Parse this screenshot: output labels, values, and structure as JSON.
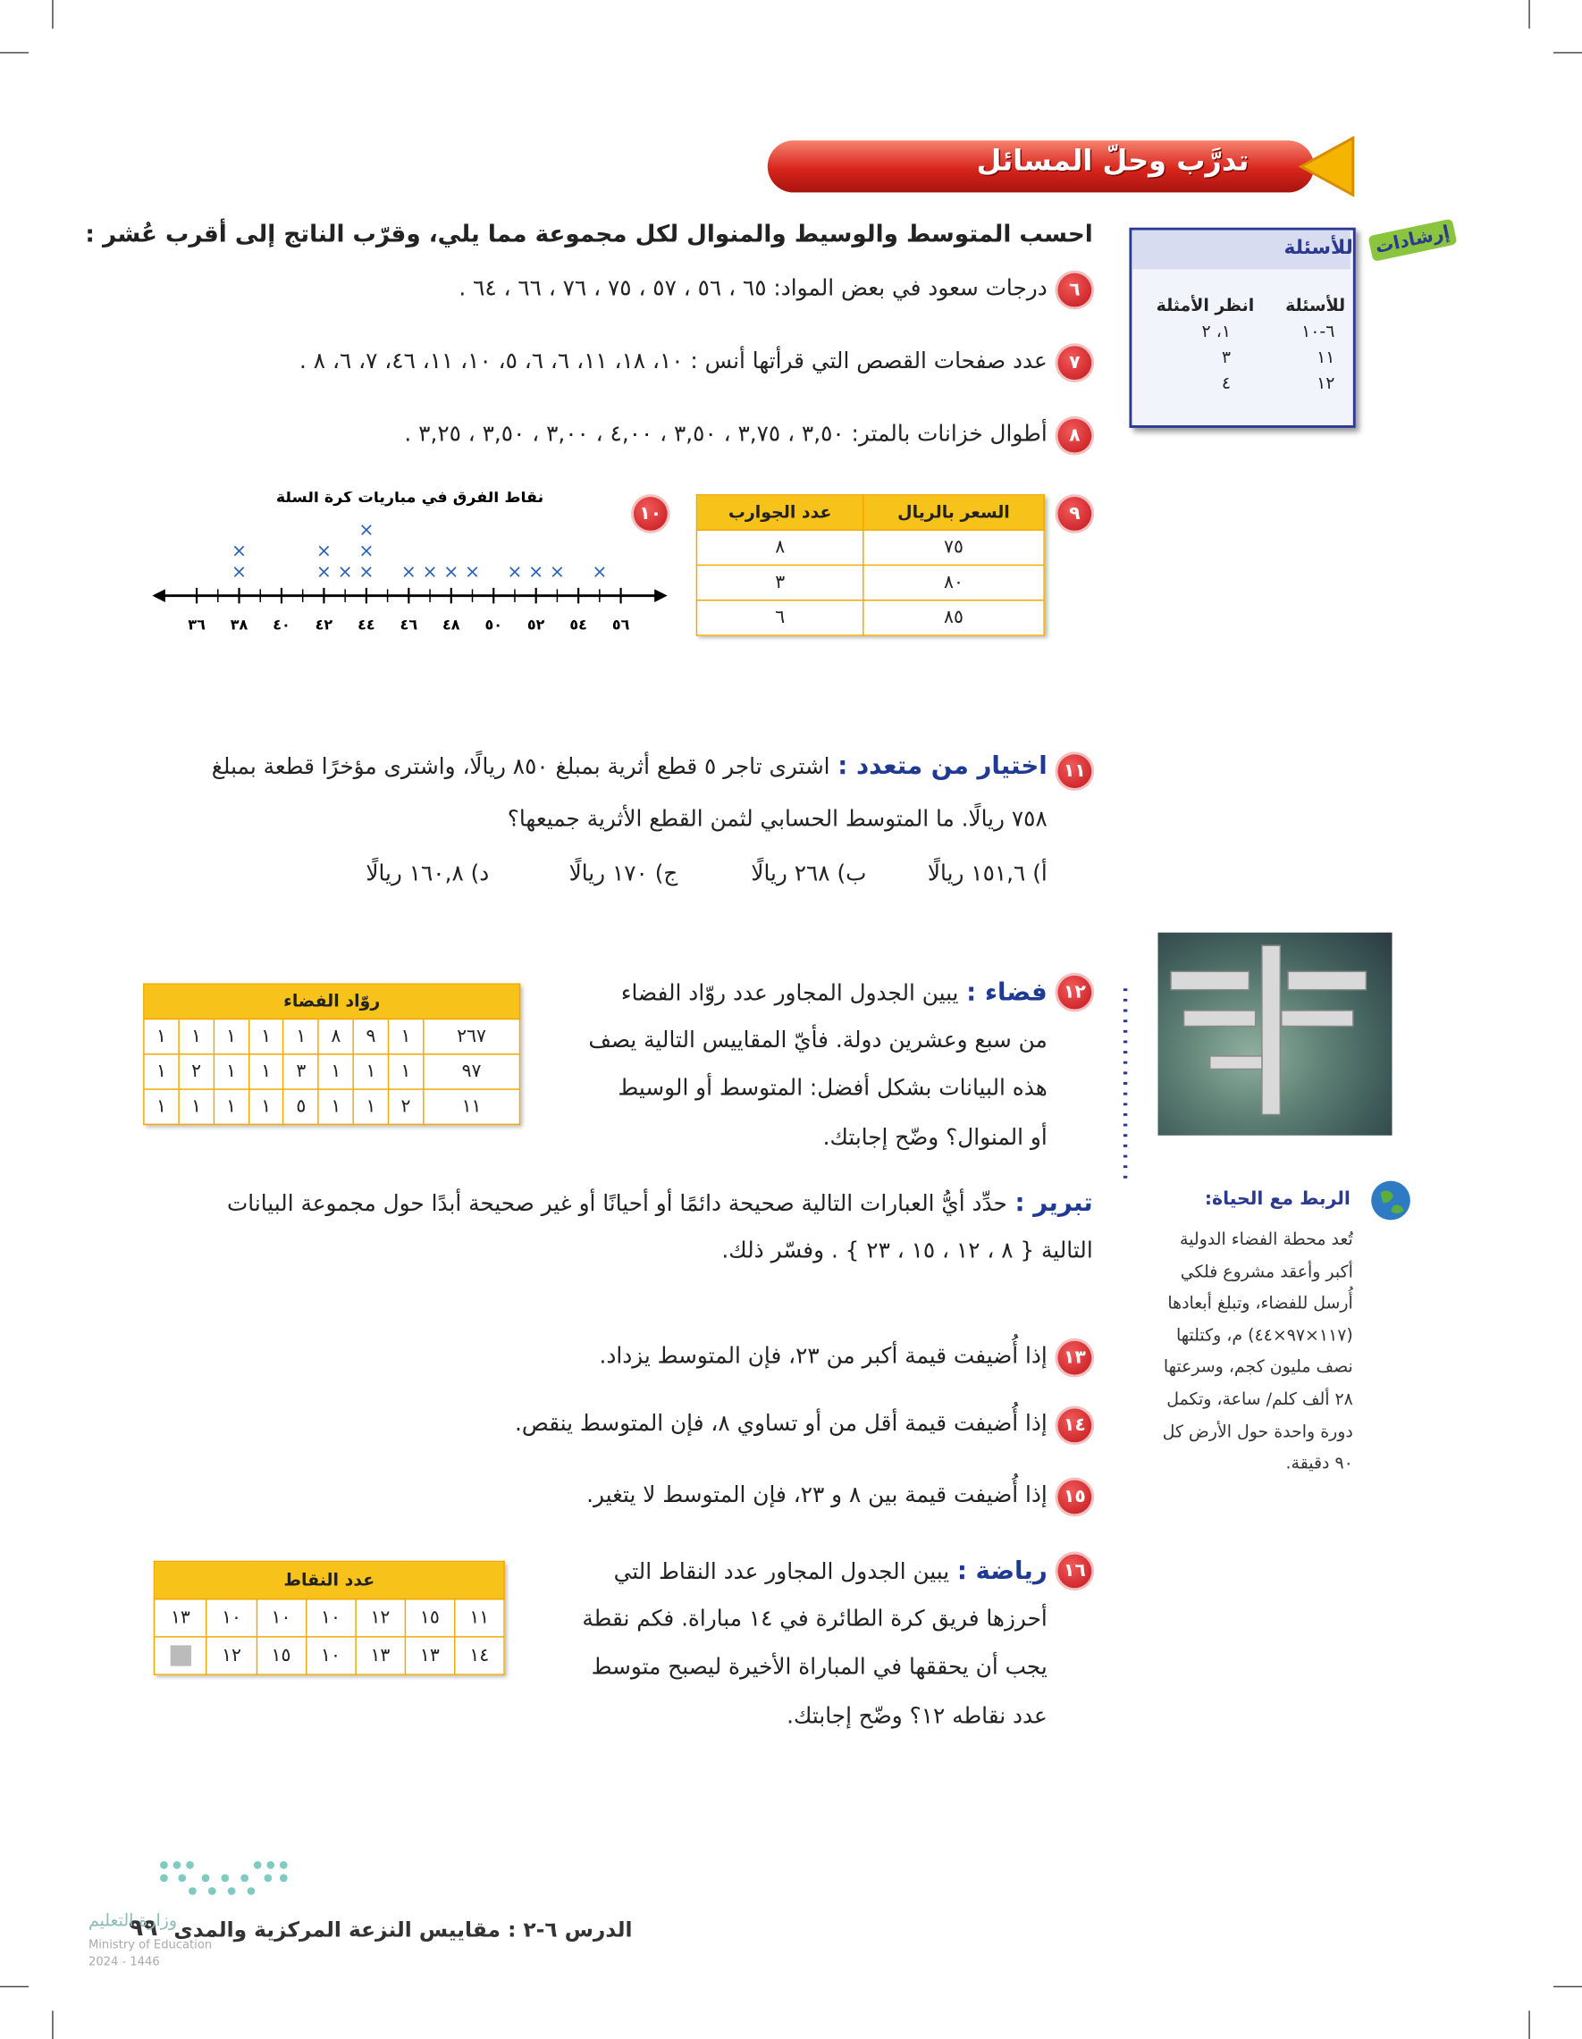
{
  "banner": "تدرَّب وحلّ المسائل",
  "instructions": "احسب المتوسط والوسيط والمنوال لكل مجموعة مما يلي، وقرّب الناتج إلى أقرب عُشر :",
  "hint_box": {
    "label": "إرشادات",
    "title": "للأسئلة",
    "columns": [
      "للأسئلة",
      "انظر الأمثلة"
    ],
    "rows": [
      [
        "٦-١٠",
        "١، ٢"
      ],
      [
        "١١",
        "٣"
      ],
      [
        "١٢",
        "٤"
      ]
    ]
  },
  "problems": [
    {
      "number": "٦",
      "text": "درجات سعود في بعض المواد: ٦٥ ، ٥٦ ، ٥٧ ، ٧٥ ، ٧٦ ، ٦٦ ، ٦٤ ."
    },
    {
      "number": "٧",
      "text": "عدد صفحات القصص التي قرأتها أنس : ١٠، ١٨، ١١، ٦، ٦، ٥، ١٠، ١١، ٤٦، ٧، ٦، ٨ ."
    },
    {
      "number": "٨",
      "text": "أطوال خزانات بالمتر: ٣,٥٠ ، ٣,٧٥ ، ٣,٥٠ ، ٤,٠٠ ، ٣,٠٠ ، ٣,٥٠ ، ٣,٢٥ ."
    },
    {
      "number": "٩",
      "table": {
        "header": [
          "السعر بالريال",
          "عدد الجوارب"
        ],
        "rows": [
          [
            "٧٥",
            "٨"
          ],
          [
            "٨٠",
            "٣"
          ],
          [
            "٨٥",
            "٦"
          ]
        ]
      }
    },
    {
      "number": "١٠",
      "dot_plot": {
        "title": "نقاط الفرق في مباريات كرة السلة",
        "xlim": [
          34.7,
          57.4
        ],
        "xticks": [
          {
            "value": 36,
            "label": "٣٦"
          },
          {
            "value": 38,
            "label": "٣٨"
          },
          {
            "value": 40,
            "label": "٤٠"
          },
          {
            "value": 42,
            "label": "٤٢"
          },
          {
            "value": 44,
            "label": "٤٤"
          },
          {
            "value": 46,
            "label": "٤٦"
          },
          {
            "value": 48,
            "label": "٤٨"
          },
          {
            "value": 50,
            "label": "٥٠"
          },
          {
            "value": 52,
            "label": "٥٢"
          },
          {
            "value": 54,
            "label": "٥٤"
          },
          {
            "value": 56,
            "label": "٥٦"
          }
        ],
        "minor_xticks": [
          37,
          39,
          41,
          43,
          45,
          47,
          49,
          51,
          53,
          55
        ],
        "points": [
          {
            "value": 38,
            "count": 2
          },
          {
            "value": 42,
            "count": 2
          },
          {
            "value": 43,
            "count": 1
          },
          {
            "value": 44,
            "count": 3
          },
          {
            "value": 46,
            "count": 1
          },
          {
            "value": 47,
            "count": 1
          },
          {
            "value": 48,
            "count": 1
          },
          {
            "value": 49,
            "count": 1
          },
          {
            "value": 51,
            "count": 1
          },
          {
            "value": 52,
            "count": 1
          },
          {
            "value": 53,
            "count": 1
          },
          {
            "value": 55,
            "count": 1
          }
        ]
      }
    },
    {
      "number": "١١",
      "label": "اختيار من متعدد :",
      "lines": [
        "اشترى تاجر ٥ قطع أثرية بمبلغ ٨٥٠ ريالًا، واشترى مؤخرًا قطعة بمبلغ",
        "٧٥٨ ريالًا. ما المتوسط الحسابي لثمن القطع الأثرية جميعها؟"
      ],
      "choices": [
        "أ) ١٥١,٦ ريالًا",
        "ب) ٢٦٨ ريالًا",
        "ج) ١٧٠ ريالًا",
        "د) ١٦٠,٨ ريالًا"
      ]
    },
    {
      "number": "١٢",
      "label": "فضاء :",
      "lines": [
        "يبين الجدول المجاور عدد روّاد الفضاء",
        "من سبع وعشرين دولة. فأيّ المقاييس التالية يصف",
        "هذه البيانات بشكل أفضل: المتوسط أو الوسيط",
        "أو المنوال؟ وضّح إجابتك."
      ],
      "table": {
        "title": "روّاد الفضاء",
        "rows": [
          [
            "٢٦٧",
            "١",
            "٩",
            "٨",
            "١",
            "١",
            "١",
            "١",
            "١"
          ],
          [
            "٩٧",
            "١",
            "١",
            "١",
            "٣",
            "١",
            "١",
            "٢",
            "١"
          ],
          [
            "١١",
            "٢",
            "١",
            "١",
            "٥",
            "١",
            "١",
            "١",
            "١"
          ]
        ]
      }
    },
    {
      "number": "١٣",
      "text": "إذا أُضيفت قيمة أكبر من ٢٣، فإن المتوسط يزداد."
    },
    {
      "number": "١٤",
      "text": "إذا أُضيفت قيمة أقل من أو تساوي ٨، فإن المتوسط ينقص."
    },
    {
      "number": "١٥",
      "text": "إذا أُضيفت قيمة بين ٨ و ٢٣، فإن المتوسط لا يتغير."
    },
    {
      "number": "١٦",
      "label": "رياضة :",
      "lines": [
        "يبين الجدول المجاور عدد النقاط التي",
        "أحرزها فريق كرة الطائرة في ١٤ مباراة. فكم نقطة",
        "يجب أن يحققها في المباراة الأخيرة ليصبح متوسط",
        "عدد نقاطه ١٢؟ وضّح إجابتك."
      ],
      "table": {
        "title": "عدد النقاط",
        "rows": [
          [
            "١١",
            "١٥",
            "١٢",
            "١٠",
            "١٠",
            "١٠",
            "١٣"
          ],
          [
            "١٤",
            "١٣",
            "١٣",
            "١٠",
            "١٥",
            "١٢",
            null
          ]
        ]
      }
    }
  ],
  "reasoning": {
    "label": "تبرير :",
    "lines": [
      "حدِّد أيُّ العبارات التالية صحيحة دائمًا أو أحيانًا أو غير صحيحة أبدًا حول مجموعة البيانات",
      "التالية { ٨ ، ١٢ ، ١٥ ، ٢٣ } . وفسّر ذلك."
    ]
  },
  "sidebar": {
    "heading": "الربط مع الحياة:",
    "lines": [
      "تُعد محطة الفضاء الدولية",
      "أكبر وأعقد مشروع فلكي",
      "أُرسل للفضاء، وتبلغ أبعادها",
      "(١١٧×٩٧×٤٤) م، وكتلتها",
      "نصف مليون كجم، وسرعتها",
      "٢٨ ألف كلم/ ساعة، وتكمل",
      "دورة واحدة حول الأرض كل",
      "٩٠ دقيقة."
    ]
  },
  "footer": {
    "lesson": "الدرس ٦-٢ : مقاييس النزعة المركزية والمدى",
    "page": "٩٩",
    "logo_ar": "وزارة التعليم",
    "logo_en": "Ministry of Education",
    "logo_year": "2024 - 1446"
  }
}
